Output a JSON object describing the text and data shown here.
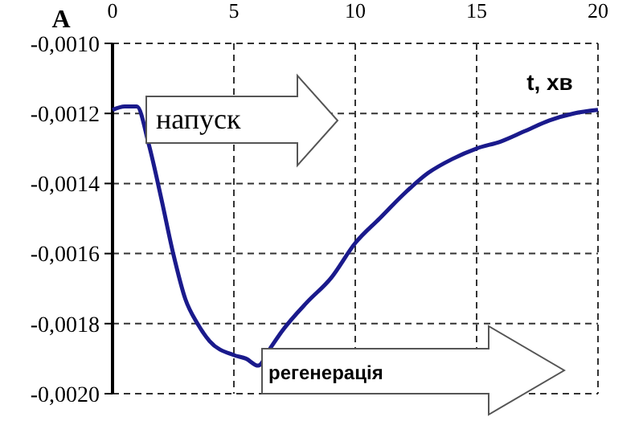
{
  "chart_data": {
    "type": "line",
    "xlabel": "t, хв",
    "ylabel": "A",
    "x": [
      0,
      0.5,
      1,
      1.5,
      2,
      2.5,
      3,
      3.5,
      4,
      5,
      5.5,
      6,
      6.5,
      7,
      8,
      9,
      10,
      11,
      12,
      13,
      14,
      15,
      16,
      17,
      18,
      19,
      20
    ],
    "series": [
      {
        "color": "#1a1a8c",
        "values": [
          -0.00119,
          -0.00118,
          -0.00118,
          -0.00129,
          -0.00144,
          -0.0016,
          -0.00173,
          -0.0018,
          -0.00185,
          -0.00189,
          -0.0019,
          -0.00192,
          -0.00187,
          -0.00182,
          -0.00174,
          -0.00167,
          -0.00157,
          -0.0015,
          -0.00143,
          -0.00137,
          -0.00133,
          -0.0013,
          -0.00128,
          -0.00125,
          -0.00122,
          -0.0012,
          -0.00119
        ]
      }
    ],
    "xlim": [
      0,
      20
    ],
    "xticks": [
      0,
      5,
      10,
      15,
      20
    ],
    "ylim": [
      -0.002,
      -0.001
    ],
    "yticks": [
      {
        "value": -0.002,
        "label": "-0,0020"
      },
      {
        "value": -0.0018,
        "label": "-0,0018"
      },
      {
        "value": -0.0016,
        "label": "-0,0016"
      },
      {
        "value": -0.0014,
        "label": "-0,0014"
      },
      {
        "value": -0.0012,
        "label": "-0,0012"
      },
      {
        "value": -0.001,
        "label": "-0,0010"
      }
    ],
    "grid": true,
    "marker": "none",
    "line_style": "solid",
    "annotations": [
      "напуск",
      "регенерація"
    ]
  }
}
